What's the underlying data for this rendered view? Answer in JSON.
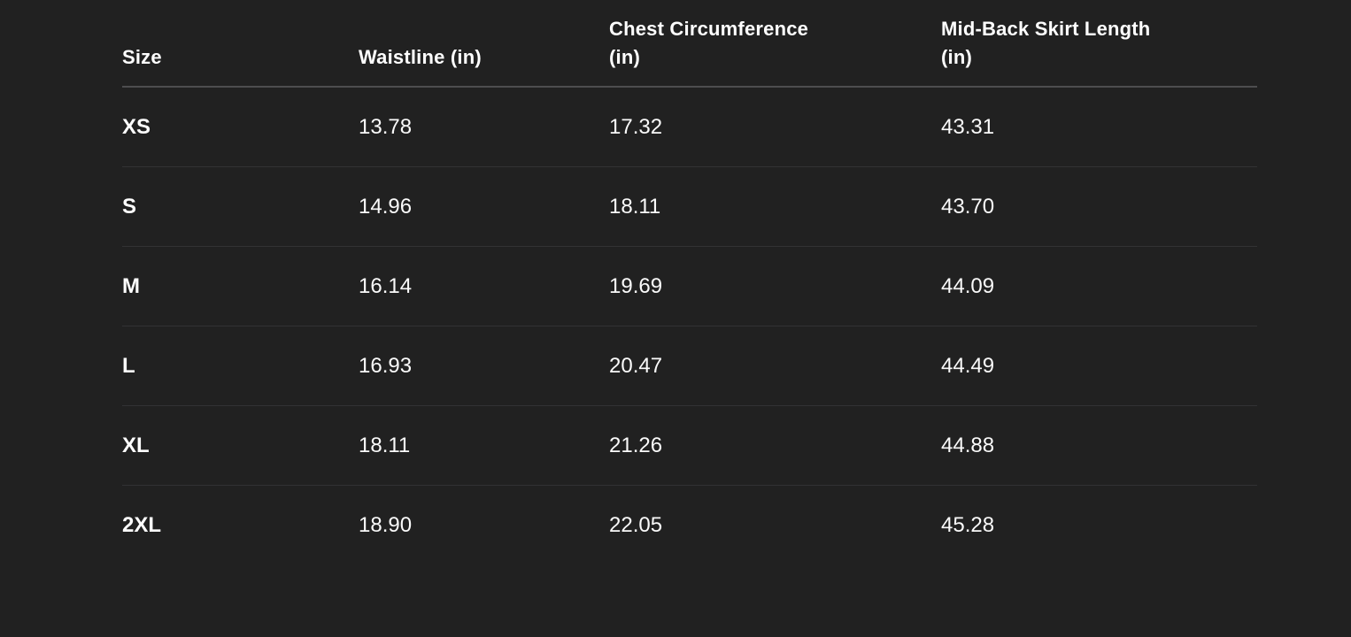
{
  "colors": {
    "background": "#212121",
    "text": "#ffffff",
    "value_text": "#fafafa",
    "header_border": "#4d4d4f",
    "row_divider": "#323234"
  },
  "table": {
    "headers": [
      "Size",
      "Waistline (in)",
      "Chest Circumference (in)",
      "Mid-Back Skirt Length (in)"
    ],
    "rows": [
      [
        "XS",
        "13.78",
        "17.32",
        "43.31"
      ],
      [
        "S",
        "14.96",
        "18.11",
        "43.70"
      ],
      [
        "M",
        "16.14",
        "19.69",
        "44.09"
      ],
      [
        "L",
        "16.93",
        "20.47",
        "44.49"
      ],
      [
        "XL",
        "18.11",
        "21.26",
        "44.88"
      ],
      [
        "2XL",
        "18.90",
        "22.05",
        "45.28"
      ]
    ]
  },
  "chart_data": {
    "type": "table",
    "columns": [
      "Size",
      "Waistline (in)",
      "Chest Circumference (in)",
      "Mid-Back Skirt Length (in)"
    ],
    "rows": [
      {
        "size": "XS",
        "waistline_in": 13.78,
        "chest_circumference_in": 17.32,
        "mid_back_skirt_length_in": 43.31
      },
      {
        "size": "S",
        "waistline_in": 14.96,
        "chest_circumference_in": 18.11,
        "mid_back_skirt_length_in": 43.7
      },
      {
        "size": "M",
        "waistline_in": 16.14,
        "chest_circumference_in": 19.69,
        "mid_back_skirt_length_in": 44.09
      },
      {
        "size": "L",
        "waistline_in": 16.93,
        "chest_circumference_in": 20.47,
        "mid_back_skirt_length_in": 44.49
      },
      {
        "size": "XL",
        "waistline_in": 18.11,
        "chest_circumference_in": 21.26,
        "mid_back_skirt_length_in": 44.88
      },
      {
        "size": "2XL",
        "waistline_in": 18.9,
        "chest_circumference_in": 22.05,
        "mid_back_skirt_length_in": 45.28
      }
    ],
    "title": "",
    "legend": false,
    "grid": "horizontal-dividers"
  }
}
